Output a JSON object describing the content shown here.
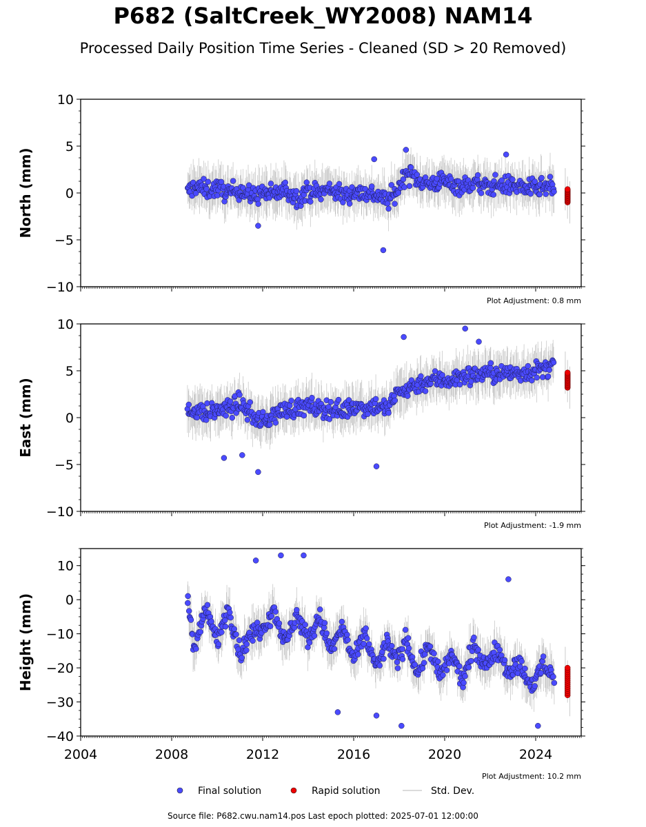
{
  "title": "P682 (SaltCreek_WY2008) NAM14",
  "subtitle": "Processed Daily Position Time Series - Cleaned (SD > 20 Removed)",
  "legend": {
    "final": "Final solution",
    "rapid": "Rapid solution",
    "std": "Std. Dev."
  },
  "footer": "Source file: P682.cwu.nam14.pos  Last epoch plotted: 2025-07-01 12:00:00",
  "colors": {
    "final": "#4a4aff",
    "rapid": "#ee0000",
    "std": "#9a9a9a"
  },
  "chart_data": [
    {
      "type": "scatter",
      "ylabel": "North (mm)",
      "ylim": [
        -10,
        10
      ],
      "yticks": [
        10,
        5,
        0,
        -5,
        -10
      ],
      "xlim": [
        2004,
        2026
      ],
      "xticks": [
        2004,
        2008,
        2012,
        2016,
        2020,
        2024
      ],
      "adjustment": "Plot Adjustment: 0.8 mm",
      "series": [
        {
          "name": "Final solution",
          "x": [
            2008.7,
            2009.0,
            2009.5,
            2010.0,
            2010.5,
            2011.0,
            2011.5,
            2012.0,
            2012.5,
            2013.0,
            2013.5,
            2014.0,
            2014.5,
            2015.0,
            2015.5,
            2016.0,
            2016.5,
            2017.0,
            2017.5,
            2017.9,
            2018.3,
            2018.8,
            2019.3,
            2019.8,
            2020.3,
            2020.8,
            2021.3,
            2021.8,
            2022.3,
            2022.8,
            2023.3,
            2023.8,
            2024.3,
            2024.8
          ],
          "y": [
            0.0,
            0.8,
            0.3,
            0.5,
            0.0,
            0.4,
            -0.4,
            0.0,
            -0.2,
            0.3,
            -0.5,
            0.2,
            0.0,
            0.5,
            -0.3,
            0.1,
            0.0,
            -0.2,
            -0.8,
            0.1,
            2.2,
            1.5,
            0.9,
            1.3,
            1.0,
            0.7,
            1.1,
            0.6,
            0.9,
            0.8,
            0.7,
            0.4,
            0.6,
            0.5
          ]
        },
        {
          "name": "Rapid solution",
          "x": [
            2025.3,
            2025.4,
            2025.5
          ],
          "y": [
            0.4,
            -0.5,
            -1.0
          ]
        }
      ],
      "outliers": [
        [
          2017.3,
          -6.1
        ],
        [
          2011.8,
          -3.5
        ],
        [
          2016.9,
          3.6
        ],
        [
          2018.3,
          4.6
        ],
        [
          2022.7,
          4.1
        ]
      ]
    },
    {
      "type": "scatter",
      "ylabel": "East (mm)",
      "ylim": [
        -10,
        10
      ],
      "yticks": [
        10,
        5,
        0,
        -5,
        -10
      ],
      "xlim": [
        2004,
        2026
      ],
      "xticks": [
        2004,
        2008,
        2012,
        2016,
        2020,
        2024
      ],
      "adjustment": "Plot Adjustment: -1.9 mm",
      "series": [
        {
          "name": "Final solution",
          "x": [
            2008.7,
            2009.0,
            2009.5,
            2010.0,
            2010.5,
            2011.0,
            2011.5,
            2012.0,
            2012.5,
            2013.0,
            2013.5,
            2014.0,
            2014.5,
            2015.0,
            2015.5,
            2016.0,
            2016.5,
            2017.0,
            2017.5,
            2017.9,
            2018.3,
            2018.8,
            2019.3,
            2019.8,
            2020.3,
            2020.8,
            2021.3,
            2021.8,
            2022.3,
            2022.8,
            2023.3,
            2023.8,
            2024.3,
            2024.8
          ],
          "y": [
            0.5,
            1.0,
            0.4,
            0.8,
            0.9,
            1.6,
            0.3,
            -0.5,
            0.3,
            0.9,
            1.0,
            1.2,
            0.9,
            1.0,
            0.7,
            1.2,
            1.1,
            1.3,
            0.9,
            2.6,
            3.0,
            3.6,
            3.9,
            4.1,
            4.0,
            4.4,
            4.5,
            4.8,
            4.6,
            4.7,
            4.8,
            4.9,
            5.1,
            5.6
          ]
        },
        {
          "name": "Rapid solution",
          "x": [
            2025.3,
            2025.4,
            2025.5
          ],
          "y": [
            4.8,
            3.9,
            3.2
          ]
        }
      ],
      "outliers": [
        [
          2011.1,
          -4.0
        ],
        [
          2011.8,
          -5.8
        ],
        [
          2017.0,
          -5.2
        ],
        [
          2018.2,
          8.6
        ],
        [
          2020.9,
          9.5
        ],
        [
          2021.5,
          8.1
        ],
        [
          2010.3,
          -4.3
        ]
      ]
    },
    {
      "type": "scatter",
      "ylabel": "Height (mm)",
      "ylim": [
        -40,
        15
      ],
      "yticks": [
        10,
        0,
        -10,
        -20,
        -30,
        -40
      ],
      "xlim": [
        2004,
        2026
      ],
      "xticks": [
        2004,
        2008,
        2012,
        2016,
        2020,
        2024
      ],
      "adjustment": "Plot Adjustment: 10.2 mm",
      "series": [
        {
          "name": "Final solution",
          "x": [
            2008.7,
            2009.0,
            2009.5,
            2010.0,
            2010.5,
            2011.0,
            2011.5,
            2012.0,
            2012.5,
            2013.0,
            2013.5,
            2014.0,
            2014.5,
            2015.0,
            2015.5,
            2016.0,
            2016.5,
            2017.0,
            2017.5,
            2017.9,
            2018.3,
            2018.8,
            2019.3,
            2019.8,
            2020.3,
            2020.8,
            2021.3,
            2021.8,
            2022.3,
            2022.8,
            2023.3,
            2023.8,
            2024.3,
            2024.8
          ],
          "y": [
            0,
            -14,
            -3,
            -12,
            -2,
            -16,
            -10,
            -8,
            -3,
            -13,
            -4,
            -12,
            -5,
            -15,
            -8,
            -18,
            -10,
            -20,
            -12,
            -19,
            -11,
            -22,
            -13,
            -23,
            -16,
            -24,
            -13,
            -20,
            -14,
            -21,
            -19,
            -26,
            -19,
            -23
          ]
        },
        {
          "name": "Rapid solution",
          "x": [
            2025.3,
            2025.4,
            2025.5
          ],
          "y": [
            -20,
            -24,
            -28
          ]
        }
      ],
      "outliers": [
        [
          2012.8,
          13
        ],
        [
          2013.8,
          13
        ],
        [
          2011.7,
          11.5
        ],
        [
          2022.8,
          6
        ],
        [
          2015.3,
          -33
        ],
        [
          2018.1,
          -37
        ],
        [
          2024.1,
          -37
        ],
        [
          2017.0,
          -34
        ]
      ]
    }
  ]
}
